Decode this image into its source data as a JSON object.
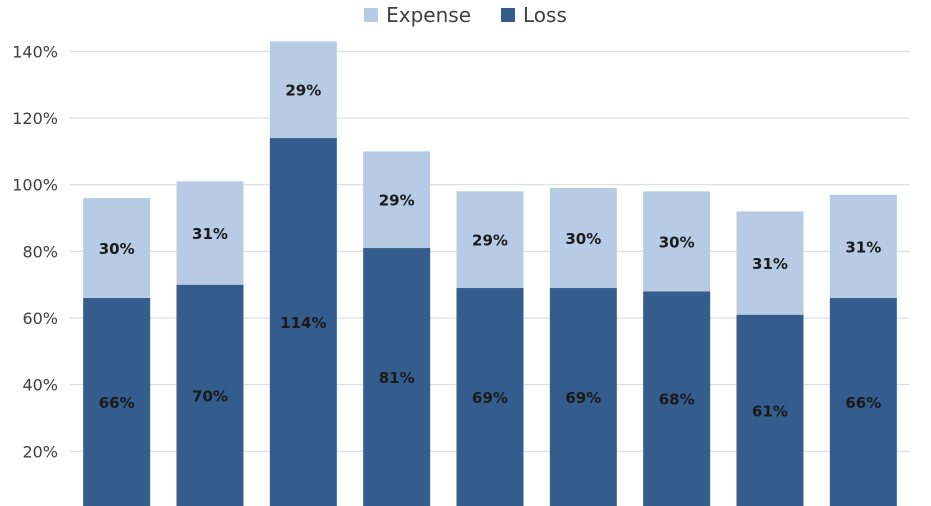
{
  "chart_data": {
    "type": "bar",
    "stacked": true,
    "categories": [
      "",
      "",
      "",
      "",
      "",
      "",
      "",
      "",
      ""
    ],
    "series": [
      {
        "name": "Loss",
        "color": "#345d8e",
        "values": [
          66,
          70,
          114,
          81,
          69,
          69,
          68,
          61,
          66
        ],
        "labels": [
          "66%",
          "70%",
          "114%",
          "81%",
          "69%",
          "69%",
          "68%",
          "61%",
          "66%"
        ]
      },
      {
        "name": "Expense",
        "color": "#b7cce4",
        "values": [
          30,
          31,
          29,
          29,
          29,
          30,
          30,
          31,
          31
        ],
        "labels": [
          "30%",
          "31%",
          "29%",
          "29%",
          "29%",
          "30%",
          "30%",
          "31%",
          "31%"
        ]
      }
    ],
    "ylim": [
      0,
      145
    ],
    "yticks": [
      20,
      40,
      60,
      80,
      100,
      120,
      140
    ],
    "ytick_labels": [
      "20%",
      "40%",
      "60%",
      "80%",
      "100%",
      "120%",
      "140%"
    ],
    "grid": true,
    "legend": "top-center"
  },
  "legend": {
    "items": [
      {
        "label": "Expense",
        "color": "#b7cce4"
      },
      {
        "label": "Loss",
        "color": "#345d8e"
      }
    ]
  }
}
